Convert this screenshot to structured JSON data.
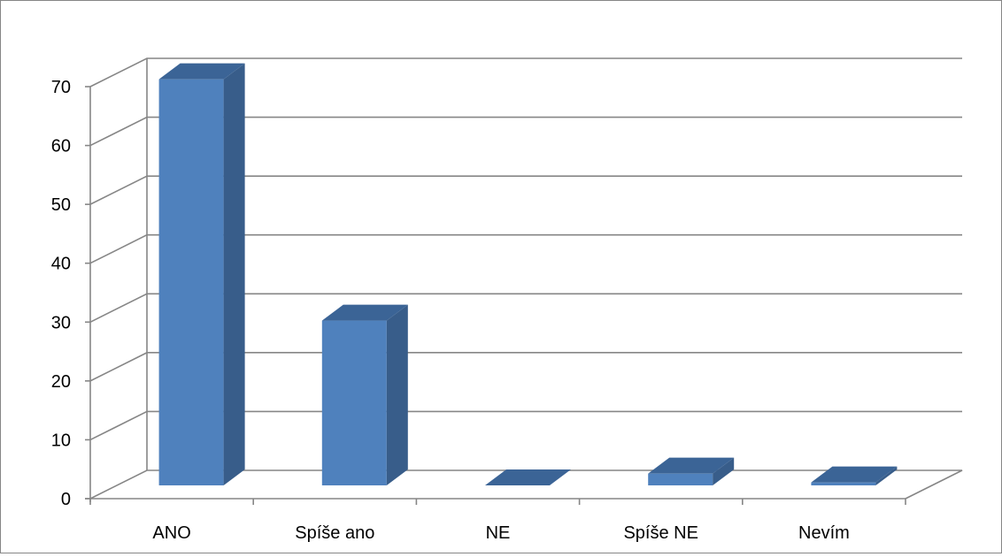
{
  "chart_data": {
    "type": "bar",
    "style": "3d-column",
    "categories": [
      "ANO",
      "Spíše ano",
      "NE",
      "Spíše NE",
      "Nevím"
    ],
    "values": [
      69,
      28,
      0,
      2,
      0.5
    ],
    "ylim": [
      0,
      70
    ],
    "yticks": [
      0,
      10,
      20,
      30,
      40,
      50,
      60,
      70
    ],
    "grid": true,
    "legend": "none",
    "colors": {
      "front": "#4f81bd",
      "top": "#3b6496",
      "side": "#385d8a",
      "grid": "#868686",
      "frame": "#868686"
    }
  }
}
